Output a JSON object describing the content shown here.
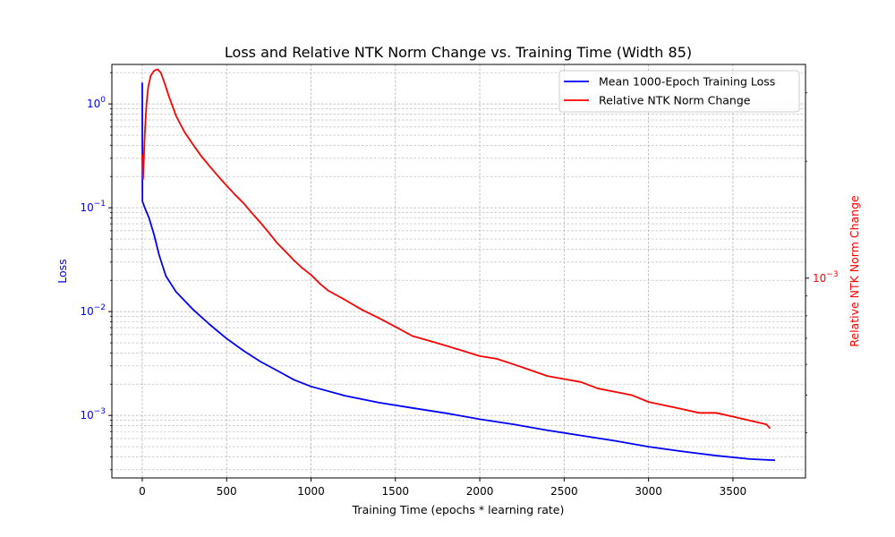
{
  "chart_data": {
    "type": "line",
    "title": "Loss and Relative NTK Norm Change vs. Training Time (Width 85)",
    "xlabel": "Training Time (epochs * learning rate)",
    "ylabel_left": "Loss",
    "ylabel_right": "Relative NTK Norm Change",
    "xlim": [
      -180,
      3930
    ],
    "x_ticks": [
      0,
      500,
      1000,
      1500,
      2000,
      2500,
      3000,
      3500
    ],
    "x_tick_labels": [
      "0",
      "500",
      "1000",
      "1500",
      "2000",
      "2500",
      "3000",
      "3500"
    ],
    "y_left": {
      "scale": "log",
      "lim": [
        0.00025,
        2.4
      ],
      "ticks": [
        1,
        0.1,
        0.01,
        0.001
      ],
      "tick_labels": [
        {
          "base": "10",
          "exp": "0"
        },
        {
          "base": "10",
          "exp": "−1"
        },
        {
          "base": "10",
          "exp": "−2"
        },
        {
          "base": "10",
          "exp": "−3"
        }
      ],
      "color": "#0000ff"
    },
    "y_right": {
      "scale": "log",
      "lim": [
        0.000306,
        0.00355
      ],
      "ticks": [
        0.001
      ],
      "tick_labels": [
        {
          "base": "10",
          "exp": "−3"
        }
      ],
      "minor_ticks": [
        0.0004,
        0.0005,
        0.0006,
        0.0007,
        0.0008,
        0.0009,
        0.002,
        0.003
      ],
      "color": "#ff0000"
    },
    "grid": true,
    "legend_position": "top-right",
    "series": [
      {
        "name": "Mean 1000-Epoch Training Loss",
        "axis": "left",
        "color": "#0000ff",
        "points": [
          [
            0,
            1.6
          ],
          [
            1,
            0.115
          ],
          [
            15,
            0.1
          ],
          [
            40,
            0.08
          ],
          [
            70,
            0.055
          ],
          [
            100,
            0.035
          ],
          [
            140,
            0.022
          ],
          [
            200,
            0.0155
          ],
          [
            300,
            0.0105
          ],
          [
            400,
            0.0075
          ],
          [
            500,
            0.0055
          ],
          [
            600,
            0.0042
          ],
          [
            700,
            0.0033
          ],
          [
            800,
            0.0027
          ],
          [
            900,
            0.0022
          ],
          [
            1000,
            0.0019
          ],
          [
            1200,
            0.00155
          ],
          [
            1400,
            0.00133
          ],
          [
            1600,
            0.00118
          ],
          [
            1800,
            0.00105
          ],
          [
            2000,
            0.00092
          ],
          [
            2200,
            0.00082
          ],
          [
            2400,
            0.00072
          ],
          [
            2600,
            0.00064
          ],
          [
            2800,
            0.00057
          ],
          [
            3000,
            0.0005
          ],
          [
            3200,
            0.00045
          ],
          [
            3400,
            0.00041
          ],
          [
            3600,
            0.00038
          ],
          [
            3750,
            0.00037
          ]
        ]
      },
      {
        "name": "Relative NTK Norm Change",
        "axis": "right",
        "color": "#ff0000",
        "points": [
          [
            0,
            0.00208
          ],
          [
            5,
            0.0018
          ],
          [
            15,
            0.00235
          ],
          [
            25,
            0.0028
          ],
          [
            35,
            0.0031
          ],
          [
            50,
            0.00332
          ],
          [
            70,
            0.00342
          ],
          [
            90,
            0.00345
          ],
          [
            110,
            0.00338
          ],
          [
            130,
            0.0032
          ],
          [
            160,
            0.00292
          ],
          [
            200,
            0.00262
          ],
          [
            250,
            0.00238
          ],
          [
            300,
            0.00221
          ],
          [
            350,
            0.00206
          ],
          [
            400,
            0.00194
          ],
          [
            450,
            0.00183
          ],
          [
            500,
            0.00173
          ],
          [
            550,
            0.00164
          ],
          [
            600,
            0.00156
          ],
          [
            650,
            0.00147
          ],
          [
            700,
            0.00139
          ],
          [
            750,
            0.00131
          ],
          [
            800,
            0.00123
          ],
          [
            850,
            0.00117
          ],
          [
            900,
            0.00111
          ],
          [
            950,
            0.00106
          ],
          [
            1000,
            0.00102
          ],
          [
            1050,
            0.00097
          ],
          [
            1100,
            0.00093
          ],
          [
            1200,
            0.00088
          ],
          [
            1300,
            0.00083
          ],
          [
            1400,
            0.00079
          ],
          [
            1500,
            0.00075
          ],
          [
            1600,
            0.00071
          ],
          [
            1700,
            0.00069
          ],
          [
            1800,
            0.00067
          ],
          [
            1900,
            0.00065
          ],
          [
            2000,
            0.00063
          ],
          [
            2100,
            0.00062
          ],
          [
            2200,
            0.0006
          ],
          [
            2300,
            0.00058
          ],
          [
            2400,
            0.00056
          ],
          [
            2500,
            0.00055
          ],
          [
            2600,
            0.00054
          ],
          [
            2700,
            0.00052
          ],
          [
            2800,
            0.00051
          ],
          [
            2900,
            0.0005
          ],
          [
            3000,
            0.00048
          ],
          [
            3100,
            0.00047
          ],
          [
            3200,
            0.00046
          ],
          [
            3300,
            0.00045
          ],
          [
            3400,
            0.00045
          ],
          [
            3500,
            0.00044
          ],
          [
            3600,
            0.00043
          ],
          [
            3700,
            0.00042
          ],
          [
            3720,
            0.00041
          ]
        ]
      }
    ]
  }
}
